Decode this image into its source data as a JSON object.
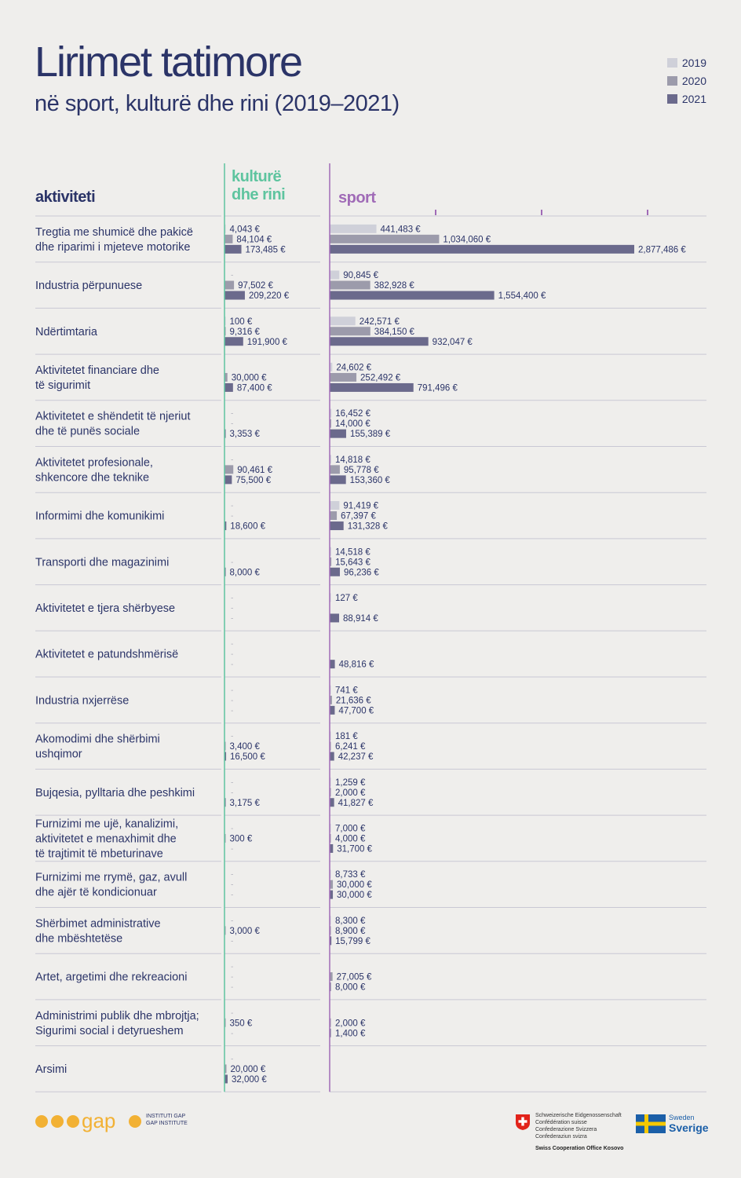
{
  "page": {
    "title": "Lirimet tatimore",
    "subtitle": "në sport, kulturë dhe rini (2019–2021)",
    "col_activity": "aktiviteti",
    "col_culture_l1": "kulturë",
    "col_culture_l2": "dhe rini",
    "col_sport": "sport"
  },
  "legend": [
    {
      "label": "2019",
      "color": "#cfd0d9"
    },
    {
      "label": "2020",
      "color": "#9c9bab"
    },
    {
      "label": "2021",
      "color": "#6b6a8c"
    }
  ],
  "footer": {
    "gap_brand": "gap",
    "gap_line1": "INSTITUTI GAP",
    "gap_line2": "GAP INSTITUTE",
    "swiss_lines": [
      "Schweizerische Eidgenossenschaft",
      "Confédération suisse",
      "Confederazione Svizzera",
      "Confederaziun svizra"
    ],
    "swiss_office": "Swiss Cooperation Office Kosovo",
    "sweden_en": "Sweden",
    "sweden_sv": "Sverige"
  },
  "chart_data": {
    "type": "bar",
    "orientation": "horizontal",
    "series": [
      {
        "name": "2019"
      },
      {
        "name": "2020"
      },
      {
        "name": "2021"
      }
    ],
    "colors": {
      "2019": "#cfd0d9",
      "2020": "#9c9bab",
      "2021": "#6b6a8c",
      "culture_axis": "#5ec49f",
      "sport_axis": "#a06bb7"
    },
    "culture_scale_max": 1000000,
    "sport_scale_max": 3000000,
    "categories": [
      {
        "label": [
          "Tregtia me shumicë dhe pakicë",
          "dhe riparimi i mjeteve motorike"
        ],
        "culture": [
          {
            "v": 4043,
            "t": "4,043 €"
          },
          {
            "v": 84104,
            "t": "84,104 €"
          },
          {
            "v": 173485,
            "t": "173,485 €"
          }
        ],
        "sport": [
          {
            "v": 441483,
            "t": "441,483 €"
          },
          {
            "v": 1034060,
            "t": "1,034,060 €"
          },
          {
            "v": 2877486,
            "t": "2,877,486 €"
          }
        ]
      },
      {
        "label": [
          "Industria përpunuese"
        ],
        "culture": [
          {
            "v": null,
            "t": "-"
          },
          {
            "v": 97502,
            "t": "97,502 €"
          },
          {
            "v": 209220,
            "t": "209,220 €"
          }
        ],
        "sport": [
          {
            "v": 90845,
            "t": "90,845 €"
          },
          {
            "v": 382928,
            "t": "382,928 €"
          },
          {
            "v": 1554400,
            "t": "1,554,400 €"
          }
        ]
      },
      {
        "label": [
          "Ndërtimtaria"
        ],
        "culture": [
          {
            "v": 100,
            "t": "100 €"
          },
          {
            "v": 9316,
            "t": "9,316 €"
          },
          {
            "v": 191900,
            "t": "191,900 €"
          }
        ],
        "sport": [
          {
            "v": 242571,
            "t": "242,571 €"
          },
          {
            "v": 384150,
            "t": "384,150 €"
          },
          {
            "v": 932047,
            "t": "932,047 €"
          }
        ]
      },
      {
        "label": [
          "Aktivitetet financiare dhe",
          "të sigurimit"
        ],
        "culture": [
          {
            "v": null,
            "t": ""
          },
          {
            "v": 30000,
            "t": "30,000 €"
          },
          {
            "v": 87400,
            "t": "87,400 €"
          }
        ],
        "sport": [
          {
            "v": 24602,
            "t": "24,602 €"
          },
          {
            "v": 252492,
            "t": "252,492 €"
          },
          {
            "v": 791496,
            "t": "791,496 €"
          }
        ]
      },
      {
        "label": [
          "Aktivitetet e shëndetit të njeriut",
          "dhe të punës sociale"
        ],
        "culture": [
          {
            "v": null,
            "t": "-"
          },
          {
            "v": null,
            "t": "-"
          },
          {
            "v": 3353,
            "t": "3,353 €"
          }
        ],
        "sport": [
          {
            "v": 16452,
            "t": "16,452 €"
          },
          {
            "v": 14000,
            "t": "14,000 €"
          },
          {
            "v": 155389,
            "t": "155,389 €"
          }
        ]
      },
      {
        "label": [
          "Aktivitetet profesionale,",
          "shkencore dhe teknike"
        ],
        "culture": [
          {
            "v": null,
            "t": "-"
          },
          {
            "v": 90461,
            "t": "90,461 €"
          },
          {
            "v": 75500,
            "t": "75,500 €"
          }
        ],
        "sport": [
          {
            "v": 14818,
            "t": "14,818 €"
          },
          {
            "v": 95778,
            "t": "95,778 €"
          },
          {
            "v": 153360,
            "t": "153,360 €"
          }
        ]
      },
      {
        "label": [
          "Informimi dhe komunikimi"
        ],
        "culture": [
          {
            "v": null,
            "t": "-"
          },
          {
            "v": null,
            "t": "-"
          },
          {
            "v": 18600,
            "t": "18,600 €"
          }
        ],
        "sport": [
          {
            "v": 91419,
            "t": "91,419 €"
          },
          {
            "v": 67397,
            "t": "67,397 €"
          },
          {
            "v": 131328,
            "t": "131,328 €"
          }
        ]
      },
      {
        "label": [
          "Transporti dhe magazinimi"
        ],
        "culture": [
          {
            "v": null,
            "t": ""
          },
          {
            "v": null,
            "t": "-"
          },
          {
            "v": 8000,
            "t": "8,000 €"
          }
        ],
        "sport": [
          {
            "v": 14518,
            "t": "14,518 €"
          },
          {
            "v": 15643,
            "t": "15,643 €"
          },
          {
            "v": 96236,
            "t": "96,236 €"
          }
        ]
      },
      {
        "label": [
          "Aktivitetet e tjera shërbyese"
        ],
        "culture": [
          {
            "v": null,
            "t": "-"
          },
          {
            "v": null,
            "t": "-"
          },
          {
            "v": null,
            "t": "-"
          }
        ],
        "sport": [
          {
            "v": 127,
            "t": "127 €"
          },
          {
            "v": null,
            "t": ""
          },
          {
            "v": 88914,
            "t": "88,914 €"
          }
        ]
      },
      {
        "label": [
          "Aktivitetet e patundshmërisë"
        ],
        "culture": [
          {
            "v": null,
            "t": "-"
          },
          {
            "v": null,
            "t": "-"
          },
          {
            "v": null,
            "t": "-"
          }
        ],
        "sport": [
          {
            "v": null,
            "t": ""
          },
          {
            "v": null,
            "t": ""
          },
          {
            "v": 48816,
            "t": "48,816 €"
          }
        ]
      },
      {
        "label": [
          "Industria nxjerrëse"
        ],
        "culture": [
          {
            "v": null,
            "t": "-"
          },
          {
            "v": null,
            "t": "-"
          },
          {
            "v": null,
            "t": "-"
          }
        ],
        "sport": [
          {
            "v": 741,
            "t": "741 €"
          },
          {
            "v": 21636,
            "t": "21,636 €"
          },
          {
            "v": 47700,
            "t": "47,700 €"
          }
        ]
      },
      {
        "label": [
          "Akomodimi dhe shërbimi",
          "ushqimor"
        ],
        "culture": [
          {
            "v": null,
            "t": "-"
          },
          {
            "v": 3400,
            "t": "3,400 €"
          },
          {
            "v": 16500,
            "t": "16,500 €"
          }
        ],
        "sport": [
          {
            "v": 181,
            "t": "181 €"
          },
          {
            "v": 6241,
            "t": "6,241 €"
          },
          {
            "v": 42237,
            "t": "42,237 €"
          }
        ]
      },
      {
        "label": [
          "Bujqesia, pylltaria dhe peshkimi"
        ],
        "culture": [
          {
            "v": null,
            "t": "-"
          },
          {
            "v": null,
            "t": "-"
          },
          {
            "v": 3175,
            "t": "3,175 €"
          }
        ],
        "sport": [
          {
            "v": 1259,
            "t": "1,259 €"
          },
          {
            "v": 2000,
            "t": "2,000 €"
          },
          {
            "v": 41827,
            "t": "41,827 €"
          }
        ]
      },
      {
        "label": [
          "Furnizimi me ujë, kanalizimi,",
          "aktivitetet e menaxhimit dhe",
          "të trajtimit të mbeturinave"
        ],
        "culture": [
          {
            "v": null,
            "t": "-"
          },
          {
            "v": 300,
            "t": "300 €"
          },
          {
            "v": null,
            "t": "-"
          }
        ],
        "sport": [
          {
            "v": 7000,
            "t": "7,000 €"
          },
          {
            "v": 4000,
            "t": "4,000 €"
          },
          {
            "v": 31700,
            "t": "31,700 €"
          }
        ]
      },
      {
        "label": [
          "Furnizimi me rrymë, gaz, avull",
          "dhe ajër të kondicionuar"
        ],
        "culture": [
          {
            "v": null,
            "t": "-"
          },
          {
            "v": null,
            "t": "-"
          },
          {
            "v": null,
            "t": "-"
          }
        ],
        "sport": [
          {
            "v": 8733,
            "t": "8,733 €"
          },
          {
            "v": 30000,
            "t": "30,000 €"
          },
          {
            "v": 30000,
            "t": "30,000 €"
          }
        ]
      },
      {
        "label": [
          "Shërbimet administrative",
          "dhe mbështetëse"
        ],
        "culture": [
          {
            "v": null,
            "t": "-"
          },
          {
            "v": 3000,
            "t": "3,000 €"
          },
          {
            "v": null,
            "t": "-"
          }
        ],
        "sport": [
          {
            "v": 8300,
            "t": "8,300 €"
          },
          {
            "v": 8900,
            "t": "8,900 €"
          },
          {
            "v": 15799,
            "t": "15,799 €"
          }
        ]
      },
      {
        "label": [
          "Artet, argetimi dhe rekreacioni"
        ],
        "culture": [
          {
            "v": null,
            "t": "-"
          },
          {
            "v": null,
            "t": "-"
          },
          {
            "v": null,
            "t": "-"
          }
        ],
        "sport": [
          {
            "v": null,
            "t": ""
          },
          {
            "v": 27005,
            "t": "27,005 €"
          },
          {
            "v": 8000,
            "t": "8,000 €"
          }
        ]
      },
      {
        "label": [
          "Administrimi publik dhe mbrojtja;",
          "Sigurimi social i detyrueshem"
        ],
        "culture": [
          {
            "v": null,
            "t": "-"
          },
          {
            "v": 350,
            "t": "350 €"
          },
          {
            "v": null,
            "t": "-"
          }
        ],
        "sport": [
          {
            "v": null,
            "t": ""
          },
          {
            "v": 2000,
            "t": "2,000 €"
          },
          {
            "v": 1400,
            "t": "1,400 €"
          }
        ]
      },
      {
        "label": [
          "Arsimi"
        ],
        "culture": [
          {
            "v": null,
            "t": "-"
          },
          {
            "v": 20000,
            "t": "20,000 €"
          },
          {
            "v": 32000,
            "t": "32,000 €"
          }
        ],
        "sport": [
          {
            "v": null,
            "t": ""
          },
          {
            "v": null,
            "t": ""
          },
          {
            "v": null,
            "t": ""
          }
        ]
      }
    ]
  }
}
